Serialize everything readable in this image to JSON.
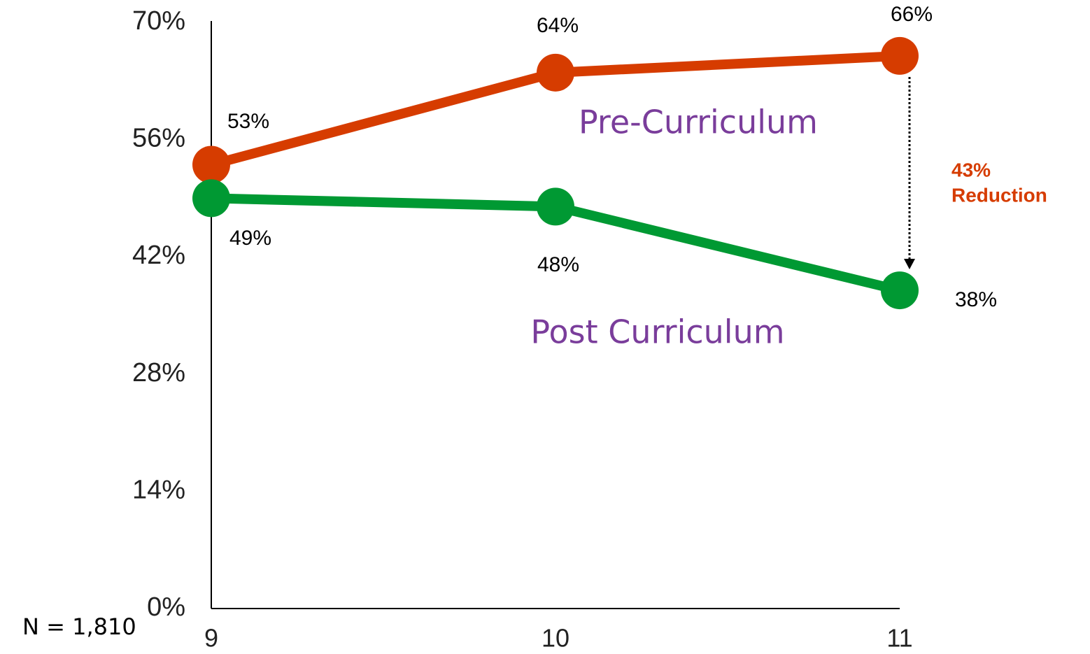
{
  "chart_data": {
    "type": "line",
    "categories": [
      "9",
      "10",
      "11"
    ],
    "series": [
      {
        "name": "Pre-Curriculum",
        "color": "#d63c00",
        "values": [
          53,
          64,
          66
        ],
        "value_labels": [
          "53%",
          "64%",
          "66%"
        ]
      },
      {
        "name": "Post Curriculum",
        "color": "#009933",
        "values": [
          49,
          48,
          38
        ],
        "value_labels": [
          "49%",
          "48%",
          "38%"
        ]
      }
    ],
    "ylim": [
      0,
      70
    ],
    "yticks": [
      {
        "value": 0,
        "label": "0%"
      },
      {
        "value": 14,
        "label": "14%"
      },
      {
        "value": 28,
        "label": "28%"
      },
      {
        "value": 42,
        "label": "42%"
      },
      {
        "value": 56,
        "label": "56%"
      },
      {
        "value": 70,
        "label": "70%"
      }
    ],
    "annotations": [
      "43%",
      "Reduction"
    ],
    "note": "N = 1,810",
    "grid": false
  }
}
